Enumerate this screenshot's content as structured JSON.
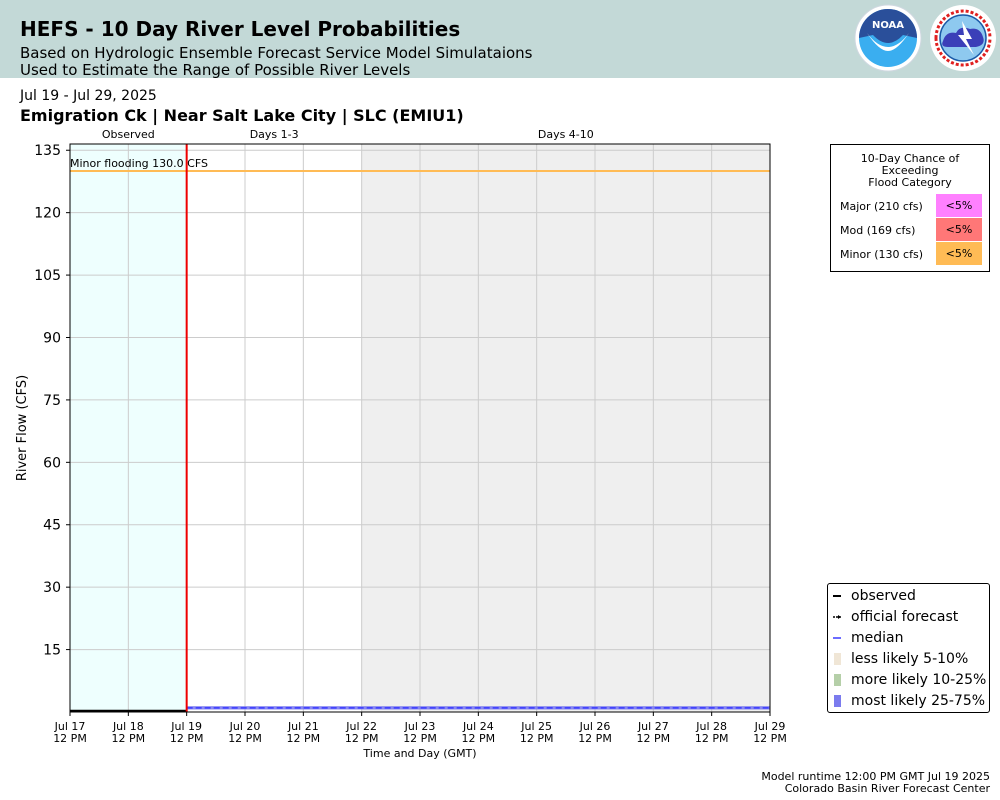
{
  "header": {
    "title": "HEFS - 10 Day River Level Probabilities",
    "subtitle1": "Based on Hydrologic Ensemble Forecast Service Model Simulataions",
    "subtitle2": "Used to Estimate the Range of Possible River Levels",
    "noaa_text": "NOAA"
  },
  "date_range": "Jul 19 - Jul 29, 2025",
  "station": "Emigration Ck | Near Salt Lake City | SLC (EMIU1)",
  "flood_category_box": {
    "title_lines": [
      "10-Day Chance of",
      "Exceeding",
      "Flood Category"
    ],
    "rows": [
      {
        "label": "Major (210 cfs)",
        "value": "<5%",
        "color": "#ff80ff"
      },
      {
        "label": "Mod (169 cfs)",
        "value": "<5%",
        "color": "#ff7777"
      },
      {
        "label": "Minor (130 cfs)",
        "value": "<5%",
        "color": "#ffbb55"
      }
    ]
  },
  "legend": {
    "items": [
      {
        "label": "observed",
        "icon": "black-line"
      },
      {
        "label": "official forecast",
        "icon": "black-dotted-arrow-line"
      },
      {
        "label": "median",
        "icon": "blue-line"
      },
      {
        "label": "less likely 5-10%",
        "icon": "beige-box",
        "color": "#f0e6d6"
      },
      {
        "label": "more likely 10-25%",
        "icon": "green-box",
        "color": "#b5cfa8"
      },
      {
        "label": "most likely 25-75%",
        "icon": "purple-box",
        "color": "#7b7bee"
      }
    ]
  },
  "footer": {
    "line1": "Model runtime 12:00 PM GMT Jul 19 2025",
    "line2": "Colorado Basin River Forecast Center"
  },
  "chart_data": {
    "type": "area",
    "ylabel": "River Flow (CFS)",
    "xlabel": "Time and Day (GMT)",
    "ylim": [
      0,
      136.5
    ],
    "yticks": [
      15,
      30,
      45,
      60,
      75,
      90,
      105,
      120,
      135
    ],
    "xlim": [
      0,
      12
    ],
    "x_ticks": [
      {
        "date": "Jul 17",
        "time": "12 PM"
      },
      {
        "date": "Jul 18",
        "time": "12 PM"
      },
      {
        "date": "Jul 19",
        "time": "12 PM"
      },
      {
        "date": "Jul 20",
        "time": "12 PM"
      },
      {
        "date": "Jul 21",
        "time": "12 PM"
      },
      {
        "date": "Jul 22",
        "time": "12 PM"
      },
      {
        "date": "Jul 23",
        "time": "12 PM"
      },
      {
        "date": "Jul 24",
        "time": "12 PM"
      },
      {
        "date": "Jul 25",
        "time": "12 PM"
      },
      {
        "date": "Jul 26",
        "time": "12 PM"
      },
      {
        "date": "Jul 27",
        "time": "12 PM"
      },
      {
        "date": "Jul 28",
        "time": "12 PM"
      },
      {
        "date": "Jul 29",
        "time": "12 PM"
      }
    ],
    "regions": [
      {
        "label": "Observed",
        "from": 0,
        "to": 2,
        "color": "#eefffe"
      },
      {
        "label": "Days 1-3",
        "from": 2,
        "to": 5,
        "color": "#ffffff"
      },
      {
        "label": "Days 4-10",
        "from": 5,
        "to": 12,
        "color": "#efefef"
      }
    ],
    "forecast_start": 2,
    "flood_line": {
      "label": "Minor flooding 130.0 CFS",
      "value": 130.0,
      "color": "#ffbb55"
    },
    "observed_value": 0.3,
    "band_25_75": {
      "low": 0.6,
      "high": 1.4
    },
    "median_value": 1.0,
    "grid": true
  }
}
